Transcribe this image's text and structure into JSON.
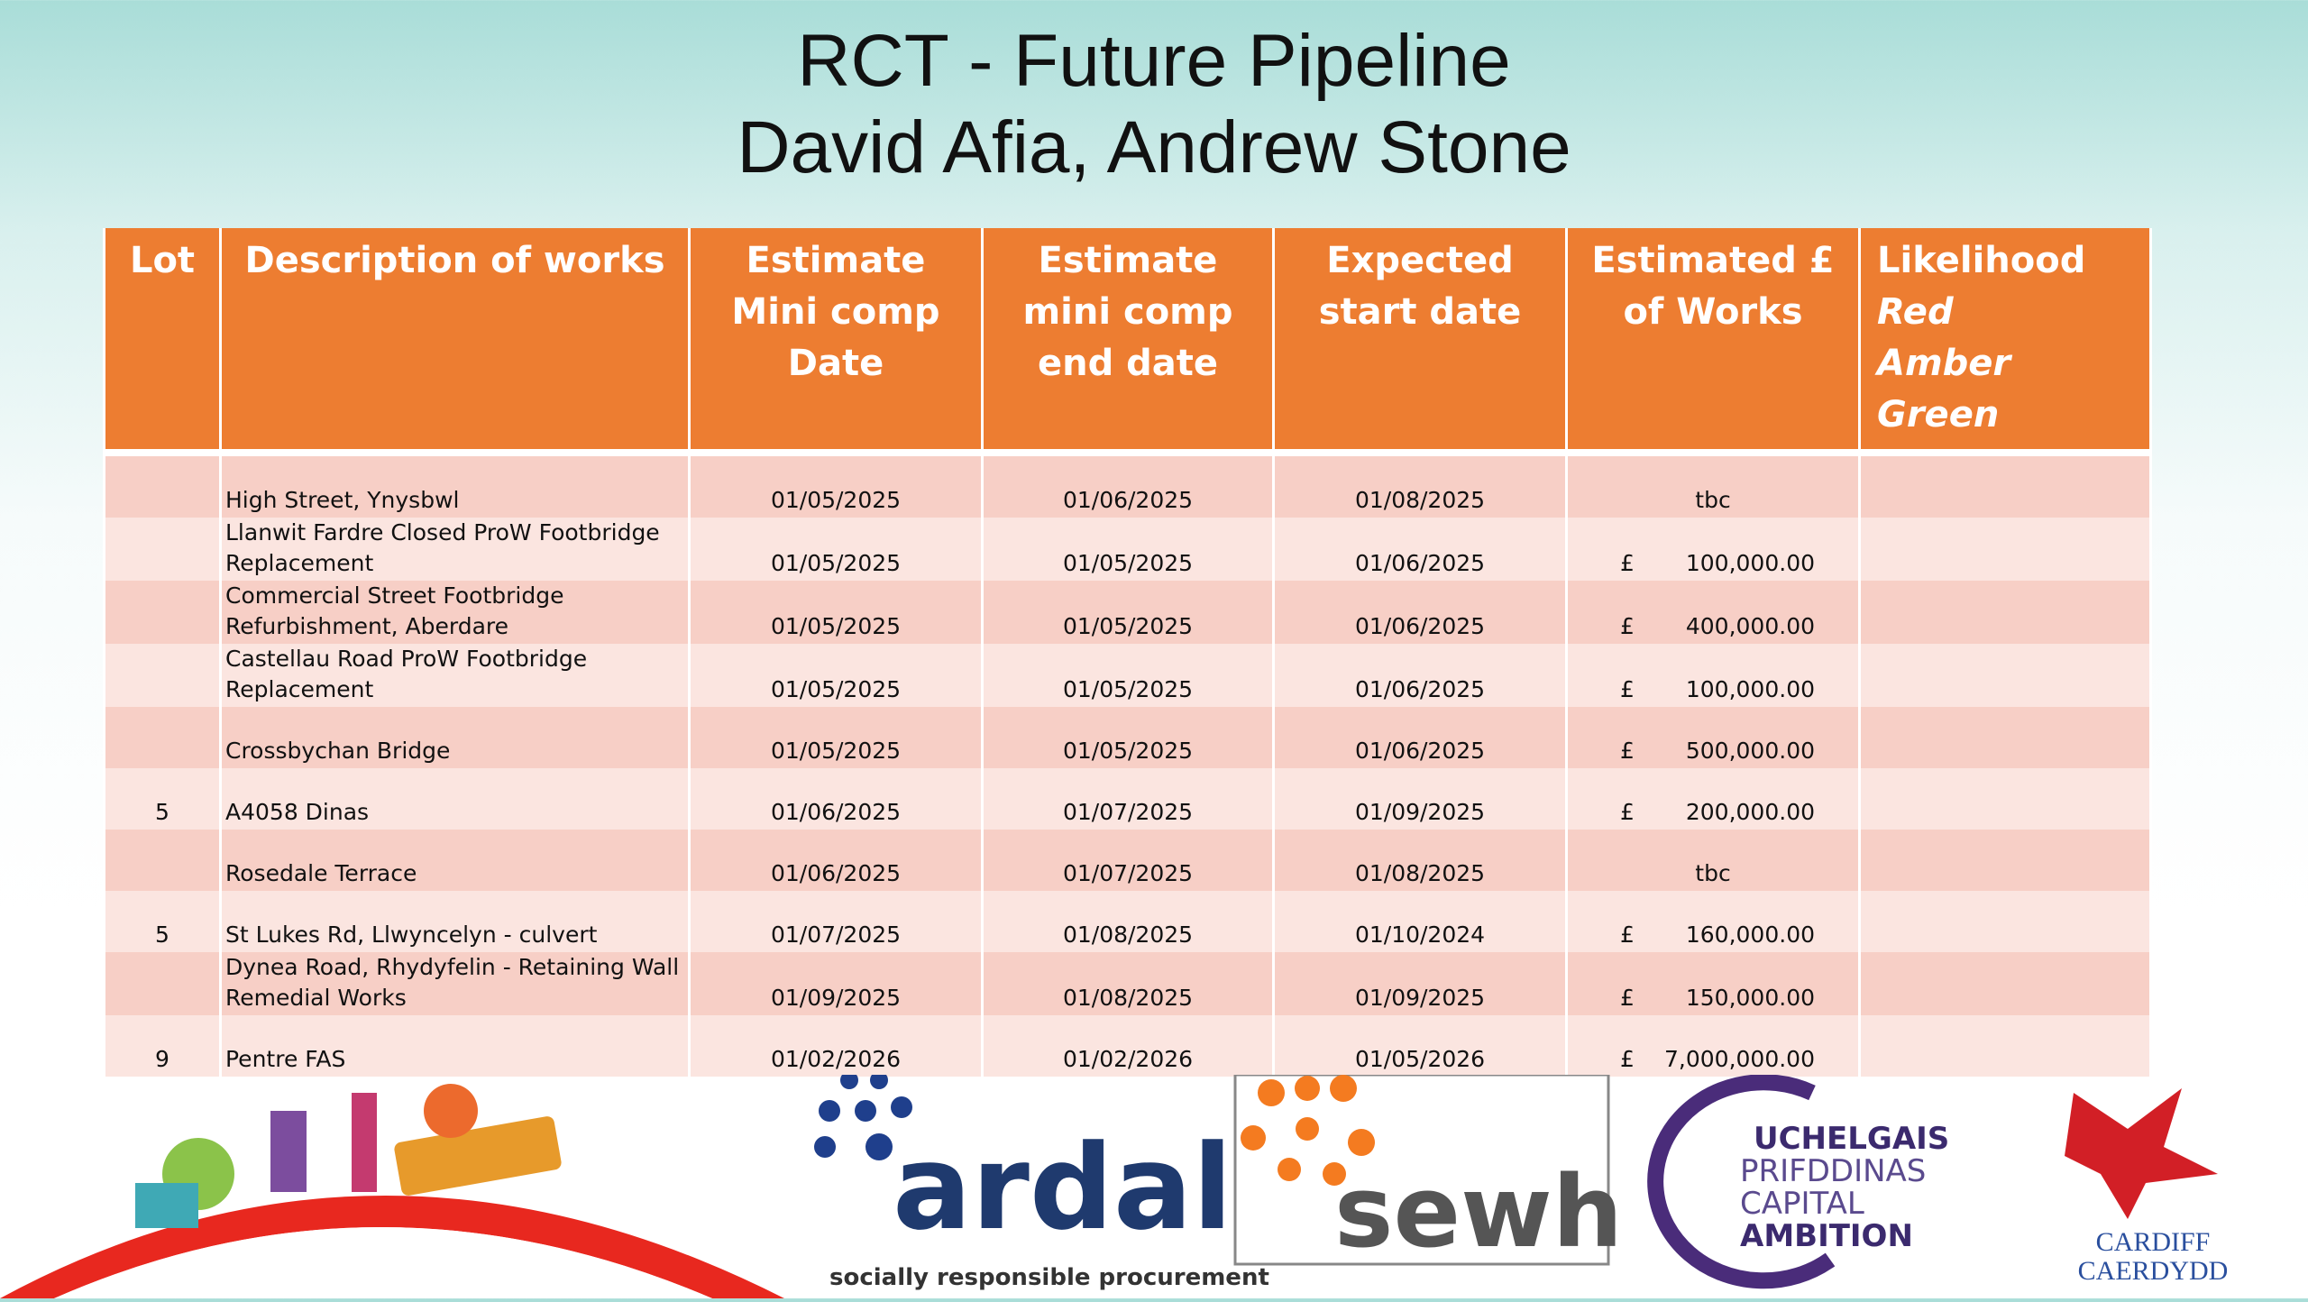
{
  "header": {
    "title": "RCT - Future Pipeline",
    "subtitle": "David Afia, Andrew Stone"
  },
  "table": {
    "headers": [
      "Lot",
      "Description of works",
      "Estimate Mini comp Date",
      "Estimate mini comp end date",
      "Expected start date",
      "Estimated £ of Works"
    ],
    "likelihood_header": {
      "label": "Likelihood",
      "options": [
        "Red",
        "Amber",
        "Green"
      ]
    },
    "rows": [
      {
        "description": "High Street, Ynysbwl",
        "start": "01/05/2025",
        "end": "01/06/2025",
        "expected": "01/08/2025",
        "amount": "tbc"
      },
      {
        "description": "Llanwit Fardre Closed ProW Footbridge Replacement",
        "start": "01/05/2025",
        "end": "01/05/2025",
        "expected": "01/06/2025",
        "currency": "£",
        "amount": "100,000.00"
      },
      {
        "description": "Commercial Street Footbridge Refurbishment, Aberdare",
        "start": "01/05/2025",
        "end": "01/05/2025",
        "expected": "01/06/2025",
        "currency": "£",
        "amount": "400,000.00"
      },
      {
        "description": "Castellau Road ProW Footbridge Replacement",
        "start": "01/05/2025",
        "end": "01/05/2025",
        "expected": "01/06/2025",
        "currency": "£",
        "amount": "100,000.00"
      },
      {
        "description": "Crossbychan Bridge",
        "start": "01/05/2025",
        "end": "01/05/2025",
        "expected": "01/06/2025",
        "currency": "£",
        "amount": "500,000.00"
      },
      {
        "lot": "5",
        "description": "A4058 Dinas",
        "start": "01/06/2025",
        "end": "01/07/2025",
        "expected": "01/09/2025",
        "currency": "£",
        "amount": "200,000.00"
      },
      {
        "description": "Rosedale Terrace",
        "start": "01/06/2025",
        "end": "01/07/2025",
        "expected": "01/08/2025",
        "amount": "tbc"
      },
      {
        "lot": "5",
        "description": "St Lukes Rd, Llwyncelyn - culvert",
        "start": "01/07/2025",
        "end": "01/08/2025",
        "expected": "01/10/2024",
        "currency": "£",
        "amount": "160,000.00"
      },
      {
        "description": "Dynea Road, Rhydyfelin - Retaining Wall Remedial Works",
        "start": "01/09/2025",
        "end": "01/08/2025",
        "expected": "01/09/2025",
        "currency": "£",
        "amount": "150,000.00"
      },
      {
        "lot": "9",
        "description": "Pentre FAS",
        "start": "01/02/2026",
        "end": "01/02/2026",
        "expected": "01/05/2026",
        "currency": "£",
        "amount": "7,000,000.00"
      }
    ]
  },
  "logos": {
    "ardal": "ardal",
    "ardal_tagline": "socially responsible procurement",
    "sewh": "sewh",
    "capital_ambition": [
      "UCHELGAIS",
      "PRIFDDINAS",
      "CAPITAL",
      "AMBITION"
    ],
    "cardiff": [
      "CARDIFF",
      "CAERDYDD"
    ]
  }
}
